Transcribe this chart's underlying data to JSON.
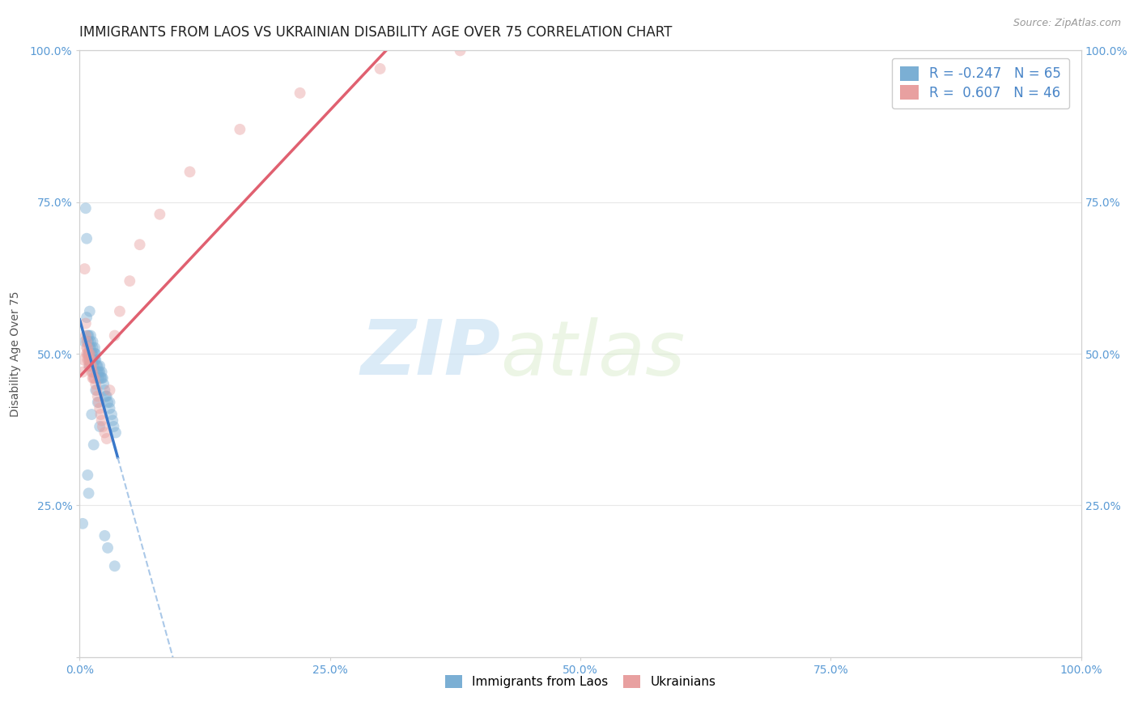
{
  "title": "IMMIGRANTS FROM LAOS VS UKRAINIAN DISABILITY AGE OVER 75 CORRELATION CHART",
  "source": "Source: ZipAtlas.com",
  "ylabel": "Disability Age Over 75",
  "xlim": [
    0,
    1
  ],
  "ylim": [
    0,
    1
  ],
  "xtick_vals": [
    0,
    0.25,
    0.5,
    0.75,
    1.0
  ],
  "xtick_labels": [
    "0.0%",
    "25.0%",
    "50.0%",
    "75.0%",
    "100.0%"
  ],
  "ytick_vals": [
    0,
    0.25,
    0.5,
    0.75,
    1.0
  ],
  "ytick_labels": [
    "",
    "25.0%",
    "50.0%",
    "75.0%",
    "100.0%"
  ],
  "blue_color": "#7bafd4",
  "pink_color": "#e8a0a0",
  "blue_line_color": "#3a78c9",
  "pink_line_color": "#e06070",
  "dashed_line_color": "#aac8e8",
  "legend_R_blue": "-0.247",
  "legend_N_blue": "65",
  "legend_R_pink": " 0.607",
  "legend_N_pink": "46",
  "legend_label_blue": "Immigrants from Laos",
  "legend_label_pink": "Ukrainians",
  "watermark_zip": "ZIP",
  "watermark_atlas": "atlas",
  "blue_x": [
    0.003,
    0.005,
    0.006,
    0.007,
    0.007,
    0.008,
    0.008,
    0.009,
    0.009,
    0.009,
    0.01,
    0.01,
    0.01,
    0.01,
    0.011,
    0.011,
    0.011,
    0.012,
    0.012,
    0.012,
    0.013,
    0.013,
    0.013,
    0.013,
    0.014,
    0.014,
    0.015,
    0.015,
    0.015,
    0.016,
    0.016,
    0.017,
    0.017,
    0.018,
    0.018,
    0.019,
    0.019,
    0.02,
    0.02,
    0.021,
    0.022,
    0.022,
    0.023,
    0.024,
    0.025,
    0.026,
    0.027,
    0.028,
    0.03,
    0.03,
    0.032,
    0.033,
    0.034,
    0.036,
    0.008,
    0.009,
    0.01,
    0.012,
    0.014,
    0.016,
    0.018,
    0.02,
    0.025,
    0.028,
    0.035
  ],
  "blue_y": [
    0.22,
    0.52,
    0.74,
    0.69,
    0.56,
    0.53,
    0.52,
    0.5,
    0.53,
    0.52,
    0.51,
    0.5,
    0.49,
    0.48,
    0.53,
    0.52,
    0.51,
    0.5,
    0.49,
    0.48,
    0.52,
    0.51,
    0.5,
    0.49,
    0.48,
    0.47,
    0.51,
    0.5,
    0.49,
    0.5,
    0.49,
    0.48,
    0.47,
    0.48,
    0.47,
    0.47,
    0.46,
    0.48,
    0.47,
    0.46,
    0.47,
    0.46,
    0.46,
    0.45,
    0.44,
    0.43,
    0.43,
    0.42,
    0.42,
    0.41,
    0.4,
    0.39,
    0.38,
    0.37,
    0.3,
    0.27,
    0.57,
    0.4,
    0.35,
    0.44,
    0.42,
    0.38,
    0.2,
    0.18,
    0.15
  ],
  "pink_x": [
    0.003,
    0.004,
    0.005,
    0.006,
    0.006,
    0.007,
    0.007,
    0.007,
    0.008,
    0.008,
    0.008,
    0.009,
    0.009,
    0.009,
    0.01,
    0.01,
    0.01,
    0.011,
    0.011,
    0.012,
    0.012,
    0.013,
    0.013,
    0.014,
    0.015,
    0.016,
    0.017,
    0.018,
    0.019,
    0.02,
    0.021,
    0.022,
    0.023,
    0.025,
    0.027,
    0.03,
    0.035,
    0.04,
    0.05,
    0.06,
    0.08,
    0.11,
    0.16,
    0.22,
    0.3,
    0.38
  ],
  "pink_y": [
    0.47,
    0.49,
    0.64,
    0.55,
    0.53,
    0.52,
    0.51,
    0.5,
    0.51,
    0.5,
    0.49,
    0.48,
    0.5,
    0.49,
    0.48,
    0.5,
    0.49,
    0.48,
    0.49,
    0.48,
    0.47,
    0.46,
    0.47,
    0.46,
    0.46,
    0.45,
    0.44,
    0.43,
    0.42,
    0.41,
    0.4,
    0.39,
    0.38,
    0.37,
    0.36,
    0.44,
    0.53,
    0.57,
    0.62,
    0.68,
    0.73,
    0.8,
    0.87,
    0.93,
    0.97,
    1.0
  ],
  "title_fontsize": 12,
  "axis_label_fontsize": 10,
  "tick_fontsize": 10,
  "marker_size": 100,
  "marker_alpha": 0.45,
  "background_color": "#ffffff",
  "tick_color": "#5b9bd5",
  "grid_color": "#e8e8e8"
}
